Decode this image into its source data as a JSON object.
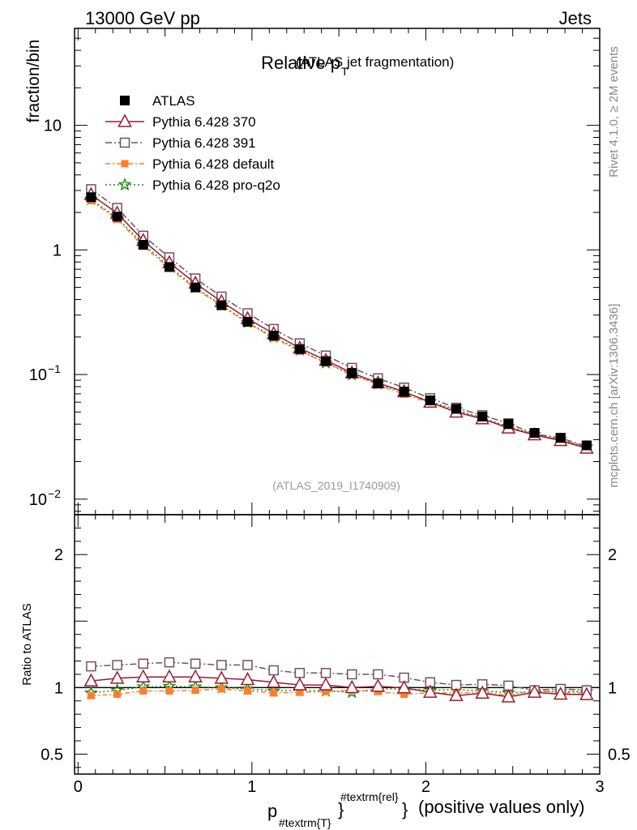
{
  "header": {
    "left": "13000 GeV pp",
    "right": "Jets"
  },
  "title": {
    "main": "Relative p",
    "sub": "T",
    "suffix": "(ATLAS jet fragmentation)"
  },
  "side_labels": {
    "rivet": "Rivet 4.1.0, ≥ 2M events",
    "source": "mcplots.cern.ch [arXiv:1306.3436]"
  },
  "watermark": "(ATLAS_2019_I1740909)",
  "xlabel": {
    "p": "p",
    "sub": "#textrm{T}",
    "sup": "#textrm{rel}",
    "rest": "(positive values only)"
  },
  "chart_data": {
    "type": "line",
    "title": "Relative pT (ATLAS jet fragmentation)",
    "main": {
      "ylabel": "fraction/bin",
      "yscale": "log",
      "ylim": [
        0.0075,
        60
      ],
      "yticks": [
        {
          "v": 10,
          "label": "10"
        },
        {
          "v": 1,
          "label": "1"
        },
        {
          "v": 0.1,
          "label": "10",
          "exp": "−1"
        },
        {
          "v": 0.01,
          "label": "10",
          "exp": "−2"
        }
      ]
    },
    "ratio": {
      "ylabel": "Ratio to ATLAS",
      "ylim": [
        0.35,
        2.3
      ],
      "yticks": [
        {
          "v": 2,
          "label": "2"
        },
        {
          "v": 1,
          "label": "1"
        },
        {
          "v": 0.5,
          "label": "0.5"
        }
      ]
    },
    "xlim": [
      -0.02,
      3.0
    ],
    "xticks": [
      {
        "v": 0,
        "label": "0"
      },
      {
        "v": 1,
        "label": "1"
      },
      {
        "v": 2,
        "label": "2"
      },
      {
        "v": 3,
        "label": "3"
      }
    ],
    "x": [
      0.075,
      0.225,
      0.375,
      0.525,
      0.675,
      0.825,
      0.975,
      1.125,
      1.275,
      1.425,
      1.575,
      1.725,
      1.875,
      2.025,
      2.175,
      2.325,
      2.475,
      2.625,
      2.775,
      2.925
    ],
    "series": [
      {
        "name": "ATLAS",
        "color": "#000000",
        "marker": "filled-square",
        "dash": "none",
        "values": [
          2.65,
          1.85,
          1.1,
          0.73,
          0.5,
          0.36,
          0.265,
          0.205,
          0.16,
          0.128,
          0.103,
          0.085,
          0.073,
          0.062,
          0.053,
          0.046,
          0.04,
          0.034,
          0.031,
          0.027
        ],
        "ratio": [
          1,
          1,
          1,
          1,
          1,
          1,
          1,
          1,
          1,
          1,
          1,
          1,
          1,
          1,
          1,
          1,
          1,
          1,
          1,
          1
        ]
      },
      {
        "name": "Pythia 6.428 370",
        "color": "#9b1b30",
        "marker": "open-triangle",
        "dash": "none",
        "values": [
          2.78,
          1.97,
          1.19,
          0.79,
          0.54,
          0.385,
          0.281,
          0.213,
          0.163,
          0.13,
          0.103,
          0.0857,
          0.0728,
          0.0599,
          0.0499,
          0.0441,
          0.0372,
          0.0328,
          0.0295,
          0.0256
        ],
        "ratio": [
          1.05,
          1.07,
          1.08,
          1.08,
          1.08,
          1.07,
          1.06,
          1.04,
          1.02,
          1.02,
          1.0,
          1.01,
          0.998,
          0.965,
          0.94,
          0.958,
          0.93,
          0.965,
          0.95,
          0.947
        ]
      },
      {
        "name": "Pythia 6.428 391",
        "color": "#735060",
        "marker": "open-square",
        "dash": "8,3,2,3",
        "values": [
          3.07,
          2.17,
          1.3,
          0.872,
          0.59,
          0.422,
          0.31,
          0.232,
          0.178,
          0.142,
          0.113,
          0.0933,
          0.0785,
          0.0645,
          0.0541,
          0.0471,
          0.0406,
          0.0333,
          0.031,
          0.0265
        ],
        "ratio": [
          1.16,
          1.17,
          1.18,
          1.19,
          1.18,
          1.17,
          1.17,
          1.13,
          1.11,
          1.11,
          1.1,
          1.1,
          1.075,
          1.04,
          1.02,
          1.025,
          1.015,
          0.98,
          0.99,
          0.98
        ]
      },
      {
        "name": "Pythia 6.428 default",
        "color": "#ff7f2a",
        "marker": "filled-square-small",
        "dash": "6,3,2,3",
        "values": [
          2.49,
          1.76,
          1.07,
          0.712,
          0.49,
          0.356,
          0.258,
          0.197,
          0.154,
          0.124,
          0.101,
          0.0825,
          0.0694,
          0.0595,
          0.0509,
          0.0444,
          0.0376,
          0.0333,
          0.0298,
          0.0259
        ],
        "ratio": [
          0.94,
          0.95,
          0.975,
          0.975,
          0.98,
          0.99,
          0.975,
          0.96,
          0.965,
          0.97,
          0.98,
          0.97,
          0.95,
          0.96,
          0.96,
          0.965,
          0.94,
          0.98,
          0.96,
          0.96
        ]
      },
      {
        "name": "Pythia 6.428 pro-q2o",
        "color": "#1a8a1a",
        "marker": "open-star",
        "dash": "2,3",
        "values": [
          2.54,
          1.81,
          1.11,
          0.737,
          0.502,
          0.36,
          0.262,
          0.2,
          0.157,
          0.124,
          0.0994,
          0.0841,
          0.0722,
          0.0608,
          0.0522,
          0.0448,
          0.0384,
          0.033,
          0.0301,
          0.0262
        ],
        "ratio": [
          0.96,
          0.98,
          1.005,
          1.01,
          1.005,
          1.0,
          0.99,
          0.975,
          0.98,
          0.975,
          0.965,
          0.99,
          0.99,
          0.98,
          0.985,
          0.975,
          0.96,
          0.97,
          0.97,
          0.97
        ]
      }
    ]
  }
}
